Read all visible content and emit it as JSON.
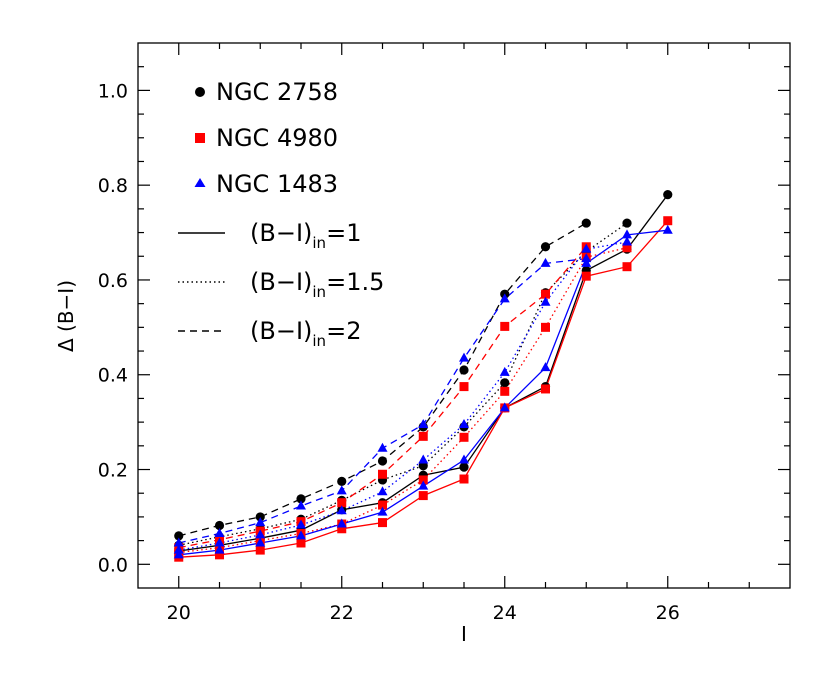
{
  "chart_data": {
    "type": "line",
    "xlabel": "I",
    "ylabel": "Δ (B−I)",
    "xlim": [
      19.5,
      27.5
    ],
    "ylim": [
      -0.05,
      1.1
    ],
    "x_ticks": [
      "20",
      "22",
      "24",
      "26"
    ],
    "y_ticks": [
      "0.0",
      "0.2",
      "0.4",
      "0.6",
      "0.8",
      "1.0"
    ],
    "x": [
      20,
      20.5,
      21,
      21.5,
      22,
      22.5,
      23,
      23.5,
      24,
      24.5,
      25,
      25.5,
      26
    ],
    "galaxies": [
      {
        "key": "ngc2758",
        "name": "NGC 2758",
        "color": "#000000",
        "marker": "circle"
      },
      {
        "key": "ngc4980",
        "name": "NGC 4980",
        "color": "#ff0000",
        "marker": "square"
      },
      {
        "key": "ngc1483",
        "name": "NGC 1483",
        "color": "#0000ff",
        "marker": "triangle"
      }
    ],
    "linestyles": [
      {
        "key": "in1",
        "base": "(B−I)",
        "sub": "in",
        "value": "=1",
        "dash": "solid"
      },
      {
        "key": "in15",
        "base": "(B−I)",
        "sub": "in",
        "value": "=1.5",
        "dash": "dotted"
      },
      {
        "key": "in2",
        "base": "(B−I)",
        "sub": "in",
        "value": "=2",
        "dash": "dashed"
      }
    ],
    "series": [
      {
        "galaxy": "ngc2758",
        "style": "in1",
        "points": [
          [
            20,
            0.028
          ],
          [
            20.5,
            0.04
          ],
          [
            21,
            0.055
          ],
          [
            21.5,
            0.072
          ],
          [
            22,
            0.115
          ],
          [
            22.5,
            0.13
          ],
          [
            23,
            0.188
          ],
          [
            23.5,
            0.205
          ],
          [
            24,
            0.33
          ],
          [
            24.5,
            0.375
          ],
          [
            25,
            0.62
          ],
          [
            25.5,
            0.665
          ],
          [
            26,
            0.78
          ]
        ]
      },
      {
        "galaxy": "ngc2758",
        "style": "in15",
        "points": [
          [
            20,
            0.04
          ],
          [
            20.5,
            0.058
          ],
          [
            21,
            0.075
          ],
          [
            21.5,
            0.095
          ],
          [
            22,
            0.135
          ],
          [
            22.5,
            0.178
          ],
          [
            23,
            0.208
          ],
          [
            23.5,
            0.29
          ],
          [
            24,
            0.383
          ],
          [
            24.5,
            0.573
          ],
          [
            25,
            0.66
          ],
          [
            25.5,
            0.72
          ]
        ]
      },
      {
        "galaxy": "ngc2758",
        "style": "in2",
        "points": [
          [
            20,
            0.06
          ],
          [
            20.5,
            0.082
          ],
          [
            21,
            0.1
          ],
          [
            21.5,
            0.138
          ],
          [
            22,
            0.175
          ],
          [
            22.5,
            0.218
          ],
          [
            23,
            0.29
          ],
          [
            23.5,
            0.41
          ],
          [
            24,
            0.57
          ],
          [
            24.5,
            0.67
          ],
          [
            25,
            0.72
          ]
        ]
      },
      {
        "galaxy": "ngc4980",
        "style": "in1",
        "points": [
          [
            20,
            0.015
          ],
          [
            20.5,
            0.02
          ],
          [
            21,
            0.03
          ],
          [
            21.5,
            0.045
          ],
          [
            22,
            0.075
          ],
          [
            22.5,
            0.088
          ],
          [
            23,
            0.145
          ],
          [
            23.5,
            0.18
          ],
          [
            24,
            0.33
          ],
          [
            24.5,
            0.37
          ],
          [
            25,
            0.608
          ],
          [
            25.5,
            0.628
          ],
          [
            26,
            0.725
          ]
        ]
      },
      {
        "galaxy": "ngc4980",
        "style": "in15",
        "points": [
          [
            20,
            0.025
          ],
          [
            20.5,
            0.035
          ],
          [
            21,
            0.05
          ],
          [
            21.5,
            0.065
          ],
          [
            22,
            0.085
          ],
          [
            22.5,
            0.125
          ],
          [
            23,
            0.178
          ],
          [
            23.5,
            0.268
          ],
          [
            24,
            0.365
          ],
          [
            24.5,
            0.5
          ],
          [
            25,
            0.648
          ],
          [
            25.5,
            0.668
          ]
        ]
      },
      {
        "galaxy": "ngc4980",
        "style": "in2",
        "points": [
          [
            20,
            0.035
          ],
          [
            20.5,
            0.052
          ],
          [
            21,
            0.07
          ],
          [
            21.5,
            0.09
          ],
          [
            22,
            0.13
          ],
          [
            22.5,
            0.19
          ],
          [
            23,
            0.27
          ],
          [
            23.5,
            0.375
          ],
          [
            24,
            0.502
          ],
          [
            24.5,
            0.57
          ],
          [
            25,
            0.67
          ]
        ]
      },
      {
        "galaxy": "ngc1483",
        "style": "in1",
        "points": [
          [
            20,
            0.02
          ],
          [
            20.5,
            0.03
          ],
          [
            21,
            0.045
          ],
          [
            21.5,
            0.06
          ],
          [
            22,
            0.085
          ],
          [
            22.5,
            0.11
          ],
          [
            23,
            0.165
          ],
          [
            23.5,
            0.22
          ],
          [
            24,
            0.33
          ],
          [
            24.5,
            0.415
          ],
          [
            25,
            0.635
          ],
          [
            25.5,
            0.695
          ],
          [
            26,
            0.705
          ]
        ]
      },
      {
        "galaxy": "ngc1483",
        "style": "in15",
        "points": [
          [
            20,
            0.03
          ],
          [
            20.5,
            0.045
          ],
          [
            21,
            0.062
          ],
          [
            21.5,
            0.083
          ],
          [
            22,
            0.113
          ],
          [
            22.5,
            0.153
          ],
          [
            23,
            0.22
          ],
          [
            23.5,
            0.295
          ],
          [
            24,
            0.405
          ],
          [
            24.5,
            0.553
          ],
          [
            25,
            0.665
          ],
          [
            25.5,
            0.68
          ]
        ]
      },
      {
        "galaxy": "ngc1483",
        "style": "in2",
        "points": [
          [
            20,
            0.045
          ],
          [
            20.5,
            0.065
          ],
          [
            21,
            0.088
          ],
          [
            21.5,
            0.123
          ],
          [
            22,
            0.155
          ],
          [
            22.5,
            0.245
          ],
          [
            23,
            0.295
          ],
          [
            23.5,
            0.435
          ],
          [
            24,
            0.56
          ],
          [
            24.5,
            0.635
          ],
          [
            25,
            0.645
          ]
        ]
      }
    ]
  }
}
